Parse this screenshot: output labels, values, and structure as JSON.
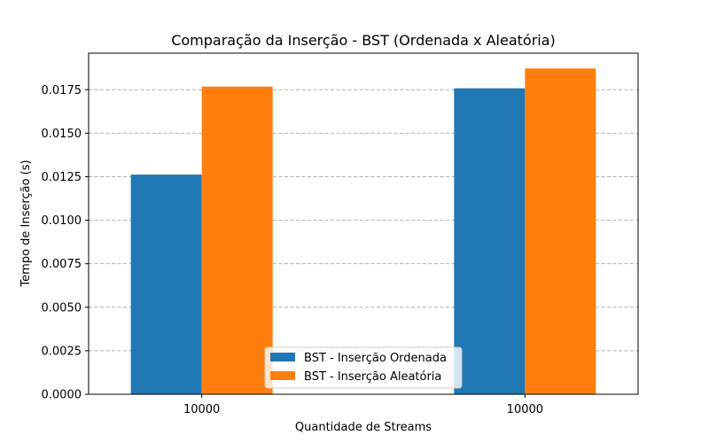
{
  "chart_data": {
    "type": "bar",
    "title": "Comparação da Inserção - BST (Ordenada x Aleatória)",
    "xlabel": "Quantidade de Streams",
    "ylabel": "Tempo de Inserção (s)",
    "categories": [
      "10000",
      "10000"
    ],
    "series": [
      {
        "name": "BST - Inserção Ordenada",
        "color": "#1f77b4",
        "values": [
          0.01262,
          0.01758
        ]
      },
      {
        "name": "BST - Inserção Aleatória",
        "color": "#ff7f0e",
        "values": [
          0.01768,
          0.01872
        ]
      }
    ],
    "ylim": [
      0,
      0.0196
    ],
    "yticks": [
      "0.0000",
      "0.0025",
      "0.0050",
      "0.0075",
      "0.0100",
      "0.0125",
      "0.0150",
      "0.0175"
    ],
    "grid": "y-dashed",
    "legend_position": "lower-center"
  }
}
